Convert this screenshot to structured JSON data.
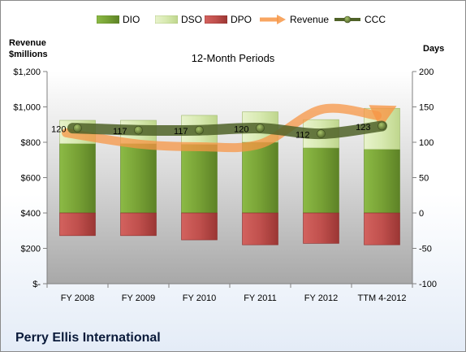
{
  "chart_data": {
    "type": "bar",
    "title": "12-Month Periods",
    "ylabel_left": [
      "Revenue",
      "$millions"
    ],
    "ylabel_right": "Days",
    "categories": [
      "FY 2008",
      "FY 2009",
      "FY 2010",
      "FY 2011",
      "FY 2012",
      "TTM 4-2012"
    ],
    "left_axis": {
      "min": 0,
      "max": 1200,
      "step": 200,
      "tick_labels": [
        "$-",
        "$200",
        "$400",
        "$600",
        "$800",
        "$1,000",
        "$1,200"
      ]
    },
    "right_axis": {
      "min": -100,
      "max": 200,
      "step": 50,
      "tick_labels": [
        "-100",
        "-50",
        "0",
        "50",
        "100",
        "150",
        "200"
      ]
    },
    "series": [
      {
        "name": "DIO",
        "kind": "stacked-bar",
        "axis": "right",
        "values": [
          98,
          98,
          97,
          100,
          92,
          90
        ],
        "color": "#77a135"
      },
      {
        "name": "DSO",
        "kind": "stacked-bar",
        "axis": "right",
        "values": [
          33,
          33,
          41,
          43,
          40,
          58
        ],
        "color": "#d7e9b0"
      },
      {
        "name": "DPO",
        "kind": "negative-bar",
        "axis": "right",
        "values": [
          -32,
          -32,
          -38,
          -45,
          -43,
          -45
        ],
        "color": "#c0504d"
      },
      {
        "name": "Revenue",
        "kind": "line",
        "axis": "left",
        "values": [
          835,
          790,
          775,
          790,
          985,
          960
        ],
        "color": "#f79646"
      },
      {
        "name": "CCC",
        "kind": "line",
        "axis": "right",
        "values": [
          120,
          117,
          117,
          120,
          112,
          123
        ],
        "color": "#4f6228"
      }
    ],
    "data_labels": [
      "120",
      "117",
      "117",
      "120",
      "112",
      "123"
    ],
    "legend_position": "top",
    "grid": false
  },
  "footer": "Perry Ellis International"
}
